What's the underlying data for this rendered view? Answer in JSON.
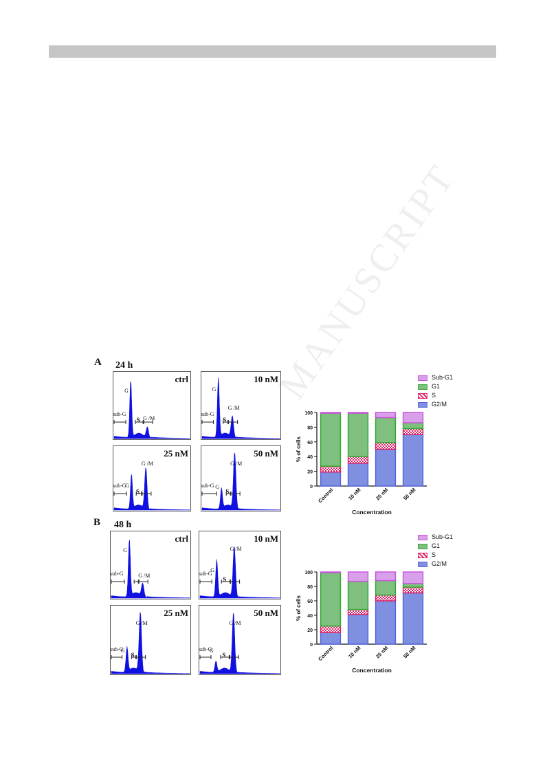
{
  "page": {
    "watermark": "MANUSCRIPT"
  },
  "figure": {
    "panels": [
      {
        "letter": "A",
        "time": "24 h",
        "histograms": [
          {
            "condition": "ctrl",
            "labels": {
              "sub_g1": "sub-G",
              "g1": "G",
              "s": "S",
              "g2m": "G /M"
            }
          },
          {
            "condition": "10 nM",
            "labels": {
              "sub_g1": "sub-G",
              "g1": "G",
              "s": "S",
              "g2m": "G /M"
            }
          },
          {
            "condition": "25 nM",
            "labels": {
              "sub_g1": "sub-G",
              "g1": "G",
              "s": "S",
              "g2m": "G /M"
            }
          },
          {
            "condition": "50 nM",
            "labels": {
              "sub_g1": "sub-G",
              "g1": "G",
              "s": "S",
              "g2m": "G /M"
            }
          }
        ]
      },
      {
        "letter": "B",
        "time": "48 h",
        "histograms": [
          {
            "condition": "ctrl",
            "labels": {
              "sub_g1": "sub-G",
              "g1": "G",
              "s": "",
              "g2m": "G /M"
            }
          },
          {
            "condition": "10 nM",
            "labels": {
              "sub_g1": "sub-G",
              "g1": "G",
              "s": "S",
              "g2m": "G /M"
            }
          },
          {
            "condition": "25 nM",
            "labels": {
              "sub_g1": "sub-G",
              "g1": "G",
              "s": "S",
              "g2m": "G /M"
            }
          },
          {
            "condition": "50 nM",
            "labels": {
              "sub_g1": "sub-G",
              "g1": "G",
              "s": "S",
              "g2m": "G /M"
            }
          }
        ]
      }
    ]
  },
  "colors": {
    "histogram_fill": "#1010e0",
    "sub_g1": "#cc55dd",
    "g1": "#33aa33",
    "s": "#dd2266",
    "g2m": "#5566dd"
  },
  "chart_data": [
    {
      "type": "bar",
      "stacked": true,
      "categories": [
        "Control",
        "10 nM",
        "25 nM",
        "50 nM"
      ],
      "xlabel": "Concentration",
      "ylabel": "% of cells",
      "ylim": [
        0,
        100
      ],
      "yticks": [
        "0",
        "20",
        "40",
        "60",
        "80",
        "100"
      ],
      "legend_position": "top-right",
      "series": [
        {
          "name": "G2/M",
          "values": [
            19,
            31,
            50,
            70
          ]
        },
        {
          "name": "S",
          "values": [
            8,
            9,
            9,
            8
          ]
        },
        {
          "name": "G1",
          "values": [
            72,
            59,
            34,
            8
          ]
        },
        {
          "name": "Sub-G1",
          "values": [
            1,
            1,
            7,
            14
          ]
        }
      ],
      "legend_order": [
        "Sub-G1",
        "G1",
        "S",
        "G2/M"
      ]
    },
    {
      "type": "bar",
      "stacked": true,
      "categories": [
        "Control",
        "10 nM",
        "25 nM",
        "50 nM"
      ],
      "xlabel": "Concentration",
      "ylabel": "% of cells",
      "ylim": [
        0,
        100
      ],
      "yticks": [
        "0",
        "20",
        "40",
        "60",
        "80",
        "100"
      ],
      "legend_position": "top-right",
      "series": [
        {
          "name": "G2/M",
          "values": [
            16,
            41,
            60,
            71
          ]
        },
        {
          "name": "S",
          "values": [
            9,
            7,
            8,
            8
          ]
        },
        {
          "name": "G1",
          "values": [
            74,
            39,
            20,
            5
          ]
        },
        {
          "name": "Sub-G1",
          "values": [
            1,
            13,
            12,
            16
          ]
        }
      ],
      "legend_order": [
        "Sub-G1",
        "G1",
        "S",
        "G2/M"
      ]
    }
  ]
}
